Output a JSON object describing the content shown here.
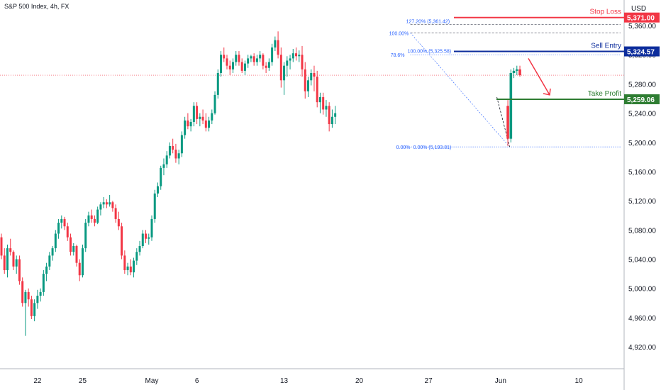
{
  "chart_data": {
    "type": "candlestick",
    "title": "S&P 500 Index, 4h, FX",
    "currency": "USD",
    "ylim": [
      4890,
      5395
    ],
    "y_ticks": [
      4920,
      4960,
      5000,
      5040,
      5080,
      5120,
      5160,
      5200,
      5240,
      5280,
      5320,
      5360
    ],
    "y_tick_labels": [
      "4,920.00",
      "4,960.00",
      "5,000.00",
      "5,040.00",
      "5,080.00",
      "5,120.00",
      "5,160.00",
      "5,200.00",
      "5,240.00",
      "5,280.00",
      "5,320.00",
      "5,360.00"
    ],
    "x_labels": [
      "22",
      "25",
      "May",
      "6",
      "13",
      "20",
      "27",
      "Jun",
      "10"
    ],
    "x_label_bar_index": [
      12,
      27,
      50,
      65,
      94,
      119,
      142,
      166,
      192
    ],
    "last_price": 5292,
    "up_color": "#089981",
    "down_color": "#f23645",
    "levels": [
      {
        "name": "Stop Loss",
        "value": 5371.0,
        "label": "5,371.00",
        "color": "#f23645"
      },
      {
        "name": "Sell Entry",
        "value": 5324.57,
        "label": "5,324.57",
        "color": "#0d2d9c"
      },
      {
        "name": "Take Profit",
        "value": 5259.06,
        "label": "5,259.06",
        "color": "#2e7d32"
      }
    ],
    "fib_labels": [
      "127.20% (5,361.42)",
      "100.00%",
      "100.00% (5,325.58)",
      "78.6%",
      "0.00%",
      "0.00% (5,193.81)"
    ],
    "candles": [
      [
        5070,
        5075,
        5040,
        5045
      ],
      [
        5045,
        5055,
        5020,
        5025
      ],
      [
        5025,
        5060,
        5015,
        5055
      ],
      [
        5055,
        5068,
        5045,
        5050
      ],
      [
        5050,
        5052,
        5025,
        5030
      ],
      [
        5030,
        5045,
        5020,
        5040
      ],
      [
        5040,
        5045,
        5005,
        5010
      ],
      [
        5010,
        5015,
        4975,
        4980
      ],
      [
        4980,
        4998,
        4935,
        4995
      ],
      [
        4995,
        5000,
        4975,
        4985
      ],
      [
        4985,
        4990,
        4958,
        4962
      ],
      [
        4962,
        4985,
        4955,
        4980
      ],
      [
        4980,
        4998,
        4972,
        4990
      ],
      [
        4990,
        5000,
        4982,
        4995
      ],
      [
        4995,
        5025,
        4990,
        5020
      ],
      [
        5020,
        5035,
        5010,
        5030
      ],
      [
        5030,
        5050,
        5025,
        5045
      ],
      [
        5045,
        5058,
        5038,
        5055
      ],
      [
        5055,
        5080,
        5050,
        5075
      ],
      [
        5075,
        5095,
        5068,
        5090
      ],
      [
        5090,
        5100,
        5082,
        5095
      ],
      [
        5095,
        5098,
        5080,
        5085
      ],
      [
        5085,
        5090,
        5065,
        5070
      ],
      [
        5070,
        5075,
        5045,
        5050
      ],
      [
        5050,
        5062,
        5045,
        5058
      ],
      [
        5058,
        5060,
        5030,
        5035
      ],
      [
        5035,
        5040,
        5010,
        5018
      ],
      [
        5018,
        5060,
        5015,
        5055
      ],
      [
        5055,
        5095,
        5050,
        5090
      ],
      [
        5090,
        5105,
        5085,
        5100
      ],
      [
        5100,
        5108,
        5090,
        5095
      ],
      [
        5095,
        5100,
        5085,
        5090
      ],
      [
        5090,
        5112,
        5088,
        5108
      ],
      [
        5108,
        5118,
        5100,
        5115
      ],
      [
        5115,
        5125,
        5110,
        5118
      ],
      [
        5118,
        5122,
        5110,
        5115
      ],
      [
        5115,
        5128,
        5112,
        5118
      ],
      [
        5118,
        5120,
        5105,
        5110
      ],
      [
        5110,
        5115,
        5090,
        5095
      ],
      [
        5095,
        5105,
        5080,
        5085
      ],
      [
        5085,
        5090,
        5040,
        5045
      ],
      [
        5045,
        5052,
        5020,
        5025
      ],
      [
        5025,
        5035,
        5018,
        5030
      ],
      [
        5030,
        5040,
        5018,
        5022
      ],
      [
        5022,
        5042,
        5015,
        5038
      ],
      [
        5038,
        5055,
        5032,
        5050
      ],
      [
        5050,
        5065,
        5045,
        5058
      ],
      [
        5058,
        5080,
        5055,
        5075
      ],
      [
        5075,
        5080,
        5062,
        5068
      ],
      [
        5068,
        5075,
        5060,
        5070
      ],
      [
        5070,
        5100,
        5065,
        5095
      ],
      [
        5095,
        5135,
        5090,
        5130
      ],
      [
        5130,
        5145,
        5125,
        5140
      ],
      [
        5140,
        5168,
        5135,
        5165
      ],
      [
        5165,
        5178,
        5155,
        5170
      ],
      [
        5170,
        5188,
        5165,
        5182
      ],
      [
        5182,
        5200,
        5178,
        5195
      ],
      [
        5195,
        5205,
        5185,
        5190
      ],
      [
        5190,
        5198,
        5172,
        5178
      ],
      [
        5178,
        5190,
        5170,
        5185
      ],
      [
        5185,
        5215,
        5180,
        5210
      ],
      [
        5210,
        5235,
        5205,
        5230
      ],
      [
        5230,
        5240,
        5218,
        5222
      ],
      [
        5222,
        5232,
        5215,
        5228
      ],
      [
        5228,
        5255,
        5222,
        5250
      ],
      [
        5250,
        5255,
        5225,
        5232
      ],
      [
        5232,
        5240,
        5222,
        5235
      ],
      [
        5235,
        5245,
        5225,
        5230
      ],
      [
        5230,
        5240,
        5215,
        5220
      ],
      [
        5220,
        5235,
        5215,
        5230
      ],
      [
        5230,
        5245,
        5225,
        5240
      ],
      [
        5240,
        5270,
        5238,
        5265
      ],
      [
        5265,
        5300,
        5260,
        5295
      ],
      [
        5295,
        5325,
        5290,
        5320
      ],
      [
        5320,
        5330,
        5310,
        5315
      ],
      [
        5315,
        5320,
        5300,
        5305
      ],
      [
        5305,
        5312,
        5292,
        5300
      ],
      [
        5300,
        5315,
        5295,
        5310
      ],
      [
        5310,
        5325,
        5305,
        5320
      ],
      [
        5320,
        5325,
        5305,
        5310
      ],
      [
        5310,
        5315,
        5295,
        5298
      ],
      [
        5298,
        5312,
        5292,
        5308
      ],
      [
        5308,
        5320,
        5302,
        5315
      ],
      [
        5315,
        5320,
        5310,
        5318
      ],
      [
        5318,
        5322,
        5305,
        5310
      ],
      [
        5310,
        5320,
        5305,
        5315
      ],
      [
        5315,
        5325,
        5310,
        5320
      ],
      [
        5320,
        5322,
        5300,
        5305
      ],
      [
        5305,
        5310,
        5295,
        5302
      ],
      [
        5302,
        5315,
        5298,
        5310
      ],
      [
        5310,
        5335,
        5305,
        5330
      ],
      [
        5330,
        5345,
        5325,
        5340
      ],
      [
        5340,
        5352,
        5315,
        5320
      ],
      [
        5320,
        5330,
        5275,
        5285
      ],
      [
        5285,
        5310,
        5265,
        5305
      ],
      [
        5305,
        5318,
        5290,
        5312
      ],
      [
        5312,
        5320,
        5300,
        5315
      ],
      [
        5315,
        5328,
        5310,
        5322
      ],
      [
        5322,
        5330,
        5312,
        5318
      ],
      [
        5318,
        5326,
        5310,
        5320
      ],
      [
        5320,
        5332,
        5290,
        5300
      ],
      [
        5300,
        5310,
        5260,
        5270
      ],
      [
        5270,
        5290,
        5262,
        5285
      ],
      [
        5285,
        5300,
        5278,
        5295
      ],
      [
        5295,
        5305,
        5270,
        5290
      ],
      [
        5290,
        5298,
        5248,
        5255
      ],
      [
        5255,
        5268,
        5240,
        5262
      ],
      [
        5262,
        5268,
        5238,
        5245
      ],
      [
        5245,
        5258,
        5235,
        5250
      ],
      [
        5250,
        5255,
        5215,
        5225
      ],
      [
        5225,
        5245,
        5220,
        5235
      ],
      [
        5235,
        5250,
        5225,
        5240
      ]
    ]
  }
}
